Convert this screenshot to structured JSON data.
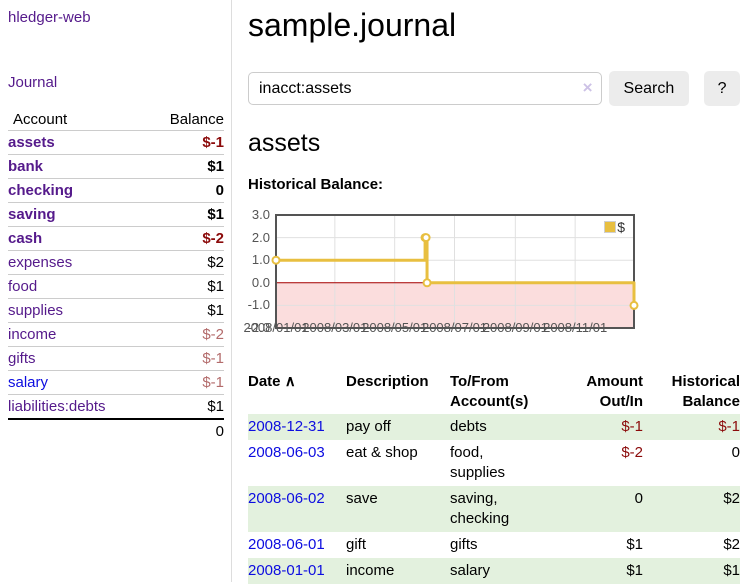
{
  "app": {
    "brand": "hledger-web",
    "nav_journal_label": "Journal"
  },
  "sidebar": {
    "accounts_header": {
      "account": "Account",
      "balance": "Balance"
    },
    "accounts": [
      {
        "name": "assets",
        "balance": "$-1",
        "indent": 1,
        "bold": true,
        "link_color": "purple",
        "balance_style": "neg-strong"
      },
      {
        "name": "bank",
        "balance": "$1",
        "indent": 2,
        "bold": true,
        "link_color": "purple",
        "balance_style": "normal"
      },
      {
        "name": "checking",
        "balance": "0",
        "indent": 3,
        "bold": true,
        "link_color": "purple",
        "balance_style": "normal"
      },
      {
        "name": "saving",
        "balance": "$1",
        "indent": 3,
        "bold": true,
        "link_color": "purple",
        "balance_style": "normal"
      },
      {
        "name": "cash",
        "balance": "$-2",
        "indent": 2,
        "bold": true,
        "link_color": "purple",
        "balance_style": "neg-strong"
      },
      {
        "name": "expenses",
        "balance": "$2",
        "indent": 1,
        "bold": false,
        "link_color": "purple",
        "balance_style": "normal"
      },
      {
        "name": "food",
        "balance": "$1",
        "indent": 2,
        "bold": false,
        "link_color": "purple",
        "balance_style": "normal"
      },
      {
        "name": "supplies",
        "balance": "$1",
        "indent": 2,
        "bold": false,
        "link_color": "purple",
        "balance_style": "normal"
      },
      {
        "name": "income",
        "balance": "$-2",
        "indent": 1,
        "bold": false,
        "link_color": "purple",
        "balance_style": "neg-muted"
      },
      {
        "name": "gifts",
        "balance": "$-1",
        "indent": 2,
        "bold": false,
        "link_color": "purple",
        "balance_style": "neg-muted"
      },
      {
        "name": "salary",
        "balance": "$-1",
        "indent": 2,
        "bold": false,
        "link_color": "blue",
        "balance_style": "neg-muted"
      },
      {
        "name": "liabilities:debts",
        "balance": "$1",
        "indent": 1,
        "bold": false,
        "link_color": "purple",
        "balance_style": "normal"
      }
    ],
    "total": "0"
  },
  "header": {
    "title": "sample.journal"
  },
  "search": {
    "value": "inacct:assets",
    "clear_icon": "×",
    "button_label": "Search",
    "help_label": "?"
  },
  "account_page": {
    "heading": "assets",
    "chart_title": "Historical Balance:"
  },
  "chart_data": {
    "type": "line",
    "step": true,
    "title": "Historical Balance",
    "series": [
      {
        "name": "$",
        "color": "#e8bf40",
        "points": [
          [
            "2008-01-01",
            1
          ],
          [
            "2008-06-01",
            2
          ],
          [
            "2008-06-02",
            2
          ],
          [
            "2008-06-03",
            0
          ],
          [
            "2008-12-31",
            -1
          ]
        ]
      }
    ],
    "xlim": [
      "2008-01-01",
      "2008-12-31"
    ],
    "ylim": [
      -2,
      3
    ],
    "y_tick_labels": [
      "3.0",
      "2.0",
      "1.0",
      "0.0",
      "-1.0",
      "-2.0"
    ],
    "x_tick_labels": [
      "2008/01/01",
      "2008/03/01",
      "2008/05/01",
      "2008/07/01",
      "2008/09/01",
      "2008/11/01"
    ],
    "grid": true,
    "grid_color": "#e0e0e0",
    "border_color": "#545454",
    "zero_line_color": "#aa0000",
    "negative_region_color": "#fbdddd",
    "marker": "circle-open",
    "legend": {
      "position": "top-right",
      "label": "$"
    }
  },
  "register": {
    "columns": {
      "date": "Date",
      "sort_indicator": "∧",
      "description": "Description",
      "accounts_line1": "To/From",
      "accounts_line2": "Account(s)",
      "amount_line1": "Amount",
      "amount_line2": "Out/In",
      "balance_line1": "Historical",
      "balance_line2": "Balance"
    },
    "rows": [
      {
        "date": "2008-12-31",
        "description": "pay off",
        "accounts": "debts",
        "amount": "$-1",
        "balance": "$-1",
        "shaded": true
      },
      {
        "date": "2008-06-03",
        "description": "eat & shop",
        "accounts": "food, supplies",
        "amount": "$-2",
        "balance": "0",
        "shaded": false
      },
      {
        "date": "2008-06-02",
        "description": "save",
        "accounts": "saving, checking",
        "amount": "0",
        "balance": "$2",
        "shaded": true
      },
      {
        "date": "2008-06-01",
        "description": "gift",
        "accounts": "gifts",
        "amount": "$1",
        "balance": "$2",
        "shaded": false
      },
      {
        "date": "2008-01-01",
        "description": "income",
        "accounts": "salary",
        "amount": "$1",
        "balance": "$1",
        "shaded": true
      }
    ]
  },
  "colors": {
    "link_purple": "#551a8b",
    "link_blue": "#0d0de0",
    "negative_strong": "#8b0a0a",
    "negative_muted": "#b36b6b",
    "row_shade_green": "#e3f1de",
    "series_gold": "#e8bf40"
  }
}
